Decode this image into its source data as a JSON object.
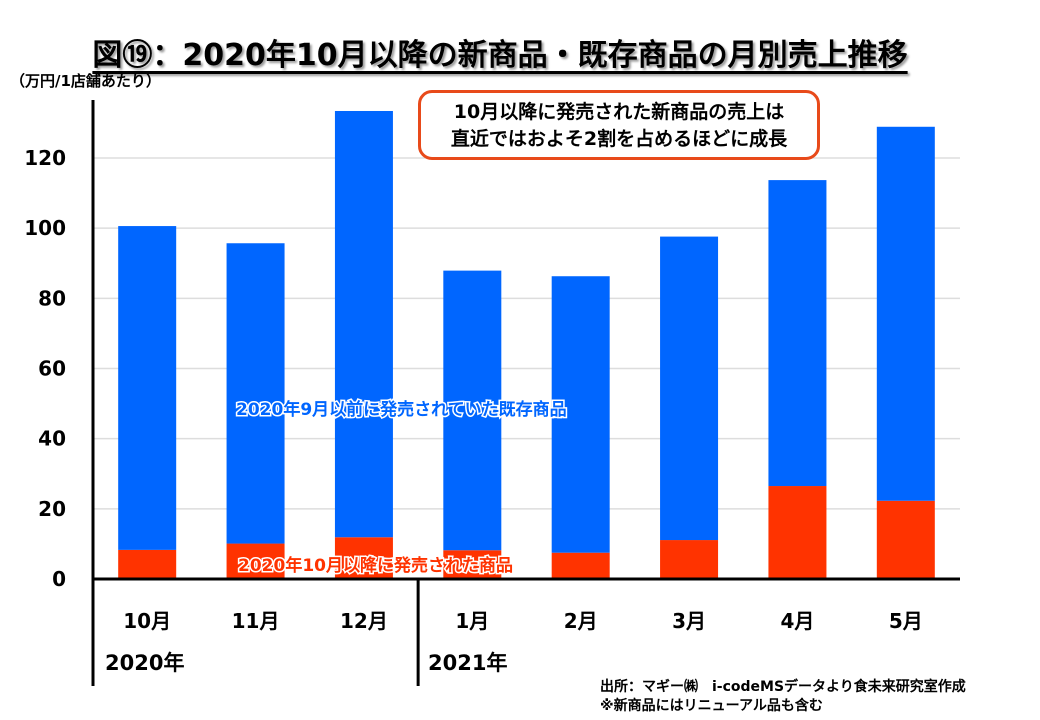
{
  "page": {
    "title": "図⑲：2020年10月以降の新商品・既存商品の月別売上推移",
    "unit_label": "（万円/1店舗あたり）",
    "callout": {
      "line1": "10月以降に発売された新商品の売上は",
      "line2": "直近ではおよそ2割を占めるほどに成長",
      "border_color": "#e84a1a"
    },
    "source": {
      "line1": "出所：マギー㈱　i-codeMSデータより食未来研究室作成",
      "line2": "※新商品にはリニューアル品も含む"
    }
  },
  "chart_data": {
    "type": "bar",
    "stacked": true,
    "title": "図⑲：2020年10月以降の新商品・既存商品の月別売上推移",
    "xlabel": "",
    "ylabel": "（万円/1店舗あたり）",
    "ylim": [
      0,
      130
    ],
    "yticks": [
      0,
      20,
      40,
      60,
      80,
      100,
      120
    ],
    "grid": true,
    "categories": [
      "10月",
      "11月",
      "12月",
      "1月",
      "2月",
      "3月",
      "4月",
      "5月"
    ],
    "year_groups": [
      {
        "label": "2020年",
        "categories": [
          "10月",
          "11月",
          "12月"
        ]
      },
      {
        "label": "2021年",
        "categories": [
          "1月",
          "2月",
          "3月",
          "4月",
          "5月"
        ]
      }
    ],
    "series": [
      {
        "name": "2020年10月以降に発売された商品",
        "color": "#ff3300",
        "values": [
          8.3,
          10.1,
          11.9,
          8.2,
          7.5,
          11.1,
          26.5,
          22.3
        ]
      },
      {
        "name": "2020年9月以前に発売されていた既存商品",
        "color": "#0066ff",
        "values": [
          92.3,
          85.6,
          121.5,
          79.7,
          78.8,
          86.5,
          87.2,
          106.6
        ]
      }
    ],
    "totals": [
      100.6,
      95.7,
      133.4,
      87.9,
      86.3,
      97.6,
      113.7,
      128.9
    ],
    "legend": "inline-labels"
  }
}
